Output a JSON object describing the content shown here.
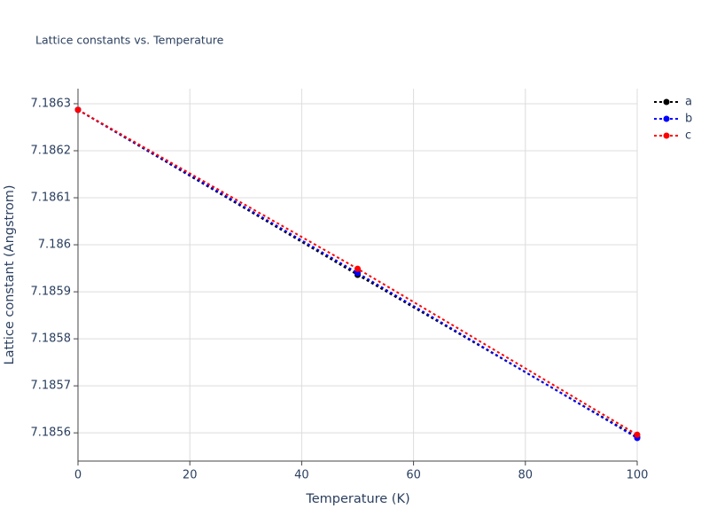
{
  "chart_data": {
    "type": "line",
    "title": "Lattice constants vs. Temperature",
    "x_label": "Temperature (K)",
    "y_label": "Lattice constant (Angstrom)",
    "x": [
      0,
      50,
      100
    ],
    "series": [
      {
        "name": "a",
        "color": "#000000",
        "values": [
          7.186287,
          7.185936,
          7.185591
        ]
      },
      {
        "name": "b",
        "color": "#0000ff",
        "values": [
          7.186287,
          7.18594,
          7.185589
        ]
      },
      {
        "name": "c",
        "color": "#ff0000",
        "values": [
          7.186287,
          7.185949,
          7.185596
        ]
      }
    ],
    "xlim": [
      0,
      100
    ],
    "xticks": [
      0,
      20,
      40,
      60,
      80,
      100
    ],
    "ylim": [
      7.18554,
      7.186332
    ],
    "yticks": [
      7.1856,
      7.1857,
      7.1858,
      7.1859,
      7.186,
      7.1861,
      7.1862,
      7.1863
    ],
    "grid": true,
    "legend": "top-right"
  }
}
